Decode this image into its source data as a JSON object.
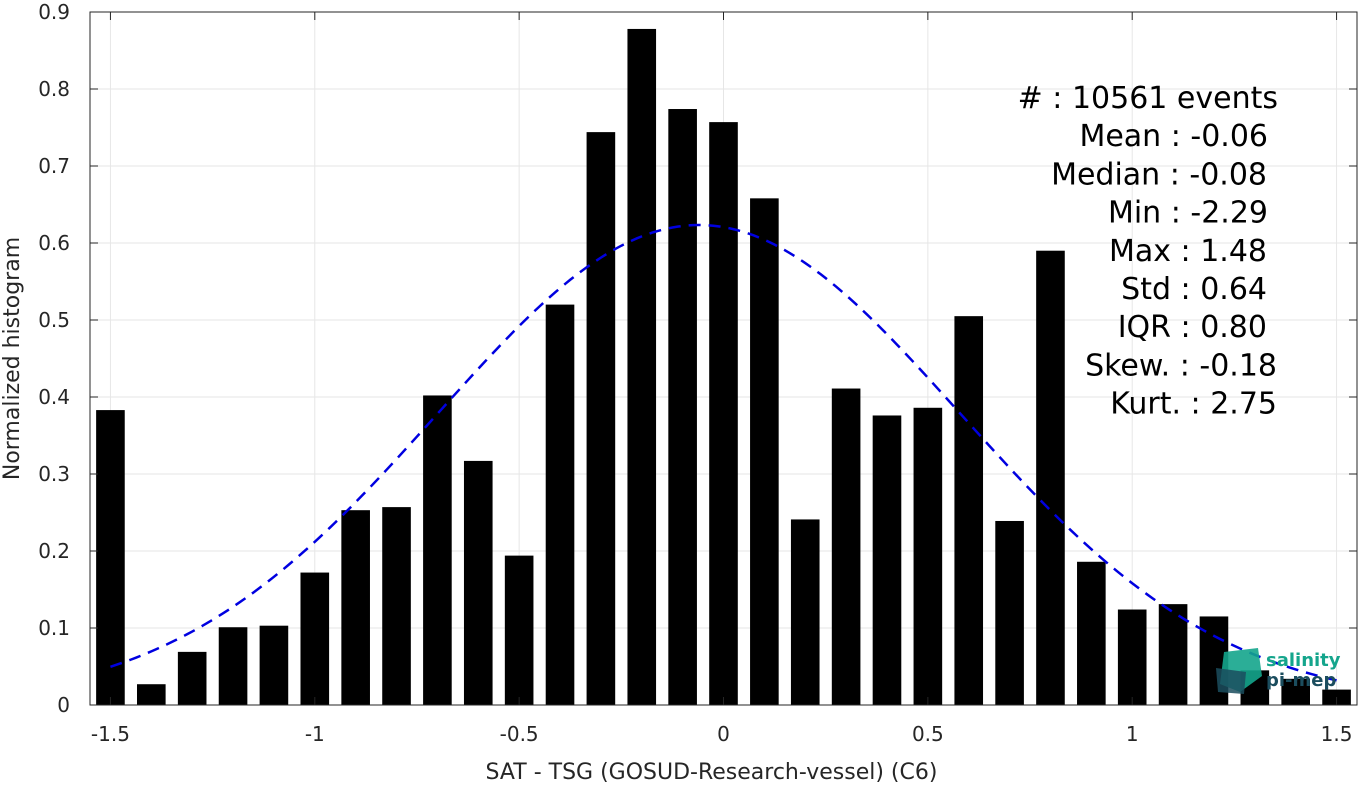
{
  "chart_data": {
    "type": "bar",
    "xlabel": "SAT - TSG (GOSUD-Research-vessel) (C6)",
    "ylabel": "Normalized histogram",
    "xlim": [
      -1.55,
      1.55
    ],
    "ylim": [
      0,
      0.9
    ],
    "grid": true,
    "x_ticks": [
      -1.5,
      -1,
      -0.5,
      0,
      0.5,
      1,
      1.5
    ],
    "x_tick_labels": [
      "-1.5",
      "-1",
      "-0.5",
      "0",
      "0.5",
      "1",
      "1.5"
    ],
    "y_ticks": [
      0,
      0.1,
      0.2,
      0.3,
      0.4,
      0.5,
      0.6,
      0.7,
      0.8,
      0.9
    ],
    "y_tick_labels": [
      "0",
      "0.1",
      "0.2",
      "0.3",
      "0.4",
      "0.5",
      "0.6",
      "0.7",
      "0.8",
      "0.9"
    ],
    "bar_color": "#000000",
    "bin_width": 0.1,
    "bins": [
      {
        "x": -1.5,
        "value": 0.383
      },
      {
        "x": -1.4,
        "value": 0.027
      },
      {
        "x": -1.3,
        "value": 0.069
      },
      {
        "x": -1.2,
        "value": 0.101
      },
      {
        "x": -1.1,
        "value": 0.103
      },
      {
        "x": -1.0,
        "value": 0.172
      },
      {
        "x": -0.9,
        "value": 0.253
      },
      {
        "x": -0.8,
        "value": 0.257
      },
      {
        "x": -0.7,
        "value": 0.402
      },
      {
        "x": -0.6,
        "value": 0.317
      },
      {
        "x": -0.5,
        "value": 0.194
      },
      {
        "x": -0.4,
        "value": 0.52
      },
      {
        "x": -0.3,
        "value": 0.744
      },
      {
        "x": -0.2,
        "value": 0.878
      },
      {
        "x": -0.1,
        "value": 0.774
      },
      {
        "x": 0.0,
        "value": 0.757
      },
      {
        "x": 0.1,
        "value": 0.658
      },
      {
        "x": 0.2,
        "value": 0.241
      },
      {
        "x": 0.3,
        "value": 0.411
      },
      {
        "x": 0.4,
        "value": 0.376
      },
      {
        "x": 0.5,
        "value": 0.386
      },
      {
        "x": 0.6,
        "value": 0.505
      },
      {
        "x": 0.7,
        "value": 0.239
      },
      {
        "x": 0.8,
        "value": 0.59
      },
      {
        "x": 0.9,
        "value": 0.186
      },
      {
        "x": 1.0,
        "value": 0.124
      },
      {
        "x": 1.1,
        "value": 0.131
      },
      {
        "x": 1.2,
        "value": 0.115
      },
      {
        "x": 1.3,
        "value": 0.045
      },
      {
        "x": 1.4,
        "value": 0.034
      },
      {
        "x": 1.5,
        "value": 0.02
      }
    ],
    "fit_curve": {
      "type": "gaussian",
      "mean": -0.06,
      "std": 0.64,
      "x_range": [
        -1.5,
        1.5
      ],
      "color": "#0000e0",
      "style": "dashed"
    },
    "stats": [
      {
        "label": "#  : 10561 events"
      },
      {
        "label": "Mean : -0.06"
      },
      {
        "label": "Median : -0.08"
      },
      {
        "label": "Min : -2.29"
      },
      {
        "label": "Max : 1.48"
      },
      {
        "label": "Std : 0.64"
      },
      {
        "label": "IQR : 0.80"
      },
      {
        "label": "Skew. : -0.18"
      },
      {
        "label": "Kurt. : 2.75"
      }
    ]
  },
  "logo": {
    "line1": "salinity",
    "line2": "pi-mep",
    "color1": "#14a58c",
    "color2": "#1b4d5e"
  }
}
